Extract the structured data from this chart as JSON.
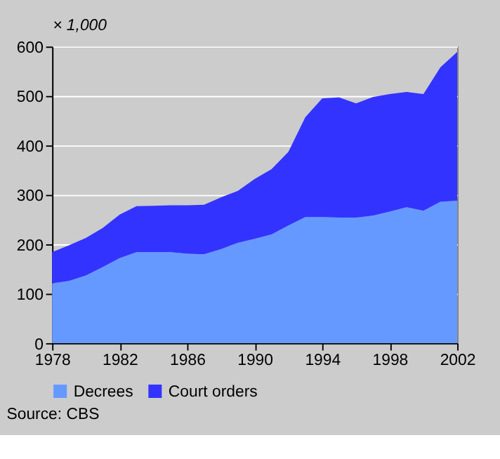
{
  "chart_data": {
    "type": "area",
    "stacked": true,
    "ylabel": "× 1,000",
    "x": [
      1978,
      1979,
      1980,
      1981,
      1982,
      1983,
      1984,
      1985,
      1986,
      1987,
      1988,
      1989,
      1990,
      1991,
      1992,
      1993,
      1994,
      1995,
      1996,
      1997,
      1998,
      1999,
      2000,
      2001,
      2002
    ],
    "series": [
      {
        "name": "Decrees",
        "color": "#6699ff",
        "values": [
          121,
          126,
          137,
          154,
          172,
          184,
          184,
          184,
          181,
          180,
          190,
          203,
          211,
          220,
          238,
          255,
          255,
          254,
          254,
          258,
          266,
          275,
          268,
          286,
          288
        ]
      },
      {
        "name": "Court orders",
        "color": "#3333ff",
        "values": [
          63,
          72,
          76,
          79,
          88,
          93,
          94,
          95,
          98,
          100,
          105,
          105,
          121,
          132,
          149,
          202,
          240,
          243,
          231,
          240,
          238,
          233,
          236,
          272,
          301
        ]
      }
    ],
    "xlim": [
      1978,
      2002
    ],
    "xticks": [
      1978,
      1982,
      1986,
      1990,
      1994,
      1998,
      2002
    ],
    "ylim": [
      0,
      600
    ],
    "yticks": [
      0,
      100,
      200,
      300,
      400,
      500,
      600
    ],
    "grid": "y",
    "legend": "bottom",
    "annotations": [
      "Source: CBS"
    ]
  }
}
